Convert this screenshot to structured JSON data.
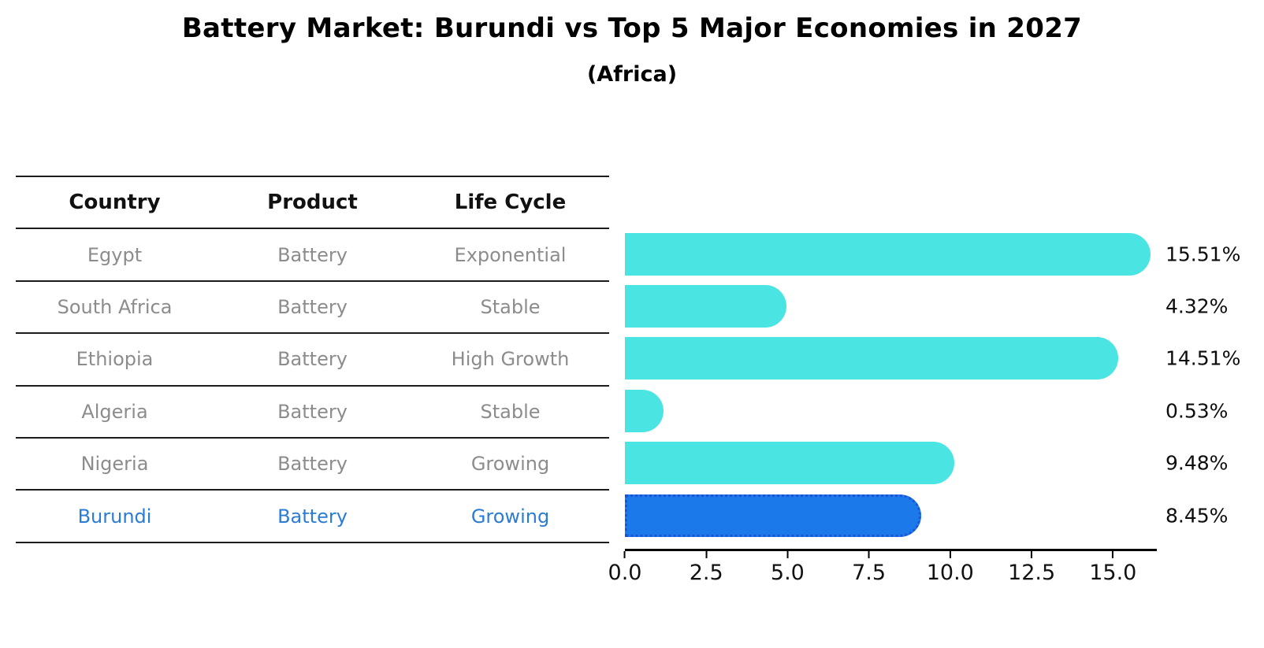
{
  "title": "Battery Market: Burundi vs Top 5 Major Economies in 2027",
  "subtitle": "(Africa)",
  "table": {
    "headers": {
      "country": "Country",
      "product": "Product",
      "life_cycle": "Life Cycle"
    }
  },
  "chart_data": {
    "type": "bar",
    "orientation": "horizontal",
    "title": "Battery Market: Burundi vs Top 5 Major Economies in 2027",
    "subtitle": "(Africa)",
    "categories": [
      "Egypt",
      "South Africa",
      "Ethiopia",
      "Algeria",
      "Nigeria",
      "Burundi"
    ],
    "values": [
      15.51,
      4.32,
      14.51,
      0.53,
      9.48,
      8.45
    ],
    "rows": [
      {
        "country": "Egypt",
        "product": "Battery",
        "life_cycle": "Exponential",
        "value": 15.51,
        "value_label": "15.51%",
        "highlight": false
      },
      {
        "country": "South Africa",
        "product": "Battery",
        "life_cycle": "Stable",
        "value": 4.32,
        "value_label": "4.32%",
        "highlight": false
      },
      {
        "country": "Ethiopia",
        "product": "Battery",
        "life_cycle": "High Growth",
        "value": 14.51,
        "value_label": "14.51%",
        "highlight": false
      },
      {
        "country": "Algeria",
        "product": "Battery",
        "life_cycle": "Stable",
        "value": 0.53,
        "value_label": "0.53%",
        "highlight": false
      },
      {
        "country": "Nigeria",
        "product": "Battery",
        "life_cycle": "Growing",
        "value": 9.48,
        "value_label": "9.48%",
        "highlight": false
      },
      {
        "country": "Burundi",
        "product": "Battery",
        "life_cycle": "Growing",
        "value": 8.45,
        "value_label": "8.45%",
        "highlight": true
      }
    ],
    "x_ticks": [
      {
        "value": 0.0,
        "label": "0.0"
      },
      {
        "value": 2.5,
        "label": "2.5"
      },
      {
        "value": 5.0,
        "label": "5.0"
      },
      {
        "value": 7.5,
        "label": "7.5"
      },
      {
        "value": 10.0,
        "label": "10.0"
      },
      {
        "value": 12.5,
        "label": "12.5"
      },
      {
        "value": 15.0,
        "label": "15.0"
      }
    ],
    "xlim": [
      0,
      16.35
    ],
    "grid": false,
    "legend": false
  },
  "colors": {
    "bar": "#4ae4e2",
    "highlight_bar": "#1b79ea",
    "highlight_bar_border": "#1a55d8",
    "highlight_text": "#2a7cd4",
    "cell_text": "#8c8c8c",
    "header_text": "#111111",
    "rule": "#1c1c1c",
    "axis": "#000000"
  }
}
